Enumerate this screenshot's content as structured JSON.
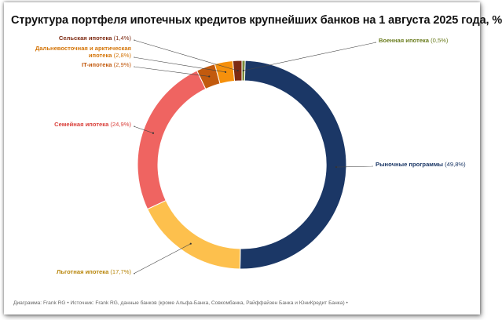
{
  "chart_data": {
    "type": "pie",
    "variant": "donut",
    "title": "Структура портфеля ипотечных кредитов крупнейших банков на 1 августа 2025 года, %",
    "slices": [
      {
        "key": "military",
        "name": "Военная ипотека",
        "value": 0.5,
        "value_label": "(0,5%)",
        "color": "#7a8a3a",
        "label_color": "#6b7d1f"
      },
      {
        "key": "market",
        "name": "Рыночные программы",
        "value": 49.8,
        "value_label": "(49,8%)",
        "color": "#1b3766",
        "label_color": "#1b3766"
      },
      {
        "key": "preferential",
        "name": "Льготная ипотека",
        "value": 17.7,
        "value_label": "(17,7%)",
        "color": "#fdc04d",
        "label_color": "#b8860b"
      },
      {
        "key": "family",
        "name": "Семейная ипотека",
        "value": 24.9,
        "value_label": "(24,9%)",
        "color": "#ef6461",
        "label_color": "#d9403b"
      },
      {
        "key": "it",
        "name": "IT-ипотека",
        "value": 2.9,
        "value_label": "(2,9%)",
        "color": "#c25a0e",
        "label_color": "#c25a0e"
      },
      {
        "key": "fareast",
        "name": "Дальневосточная и арктическая ипотека",
        "name_lines": [
          "Дальневосточная и арктическая",
          "ипотека"
        ],
        "value": 2.8,
        "value_label": "(2,8%)",
        "color": "#f5900c",
        "label_color": "#d4760a"
      },
      {
        "key": "rural",
        "name": "Сельская ипотека",
        "value": 1.4,
        "value_label": "(1,4%)",
        "color": "#7d2a12",
        "label_color": "#7d2a12"
      }
    ],
    "legend": "none"
  },
  "footer": "Диаграмма: Frank RG • Источник: Frank RG, данные банков (кроме Альфа-Банка, Совкомбанка, Райффайзен Банка и ЮниКредит Банка) •"
}
